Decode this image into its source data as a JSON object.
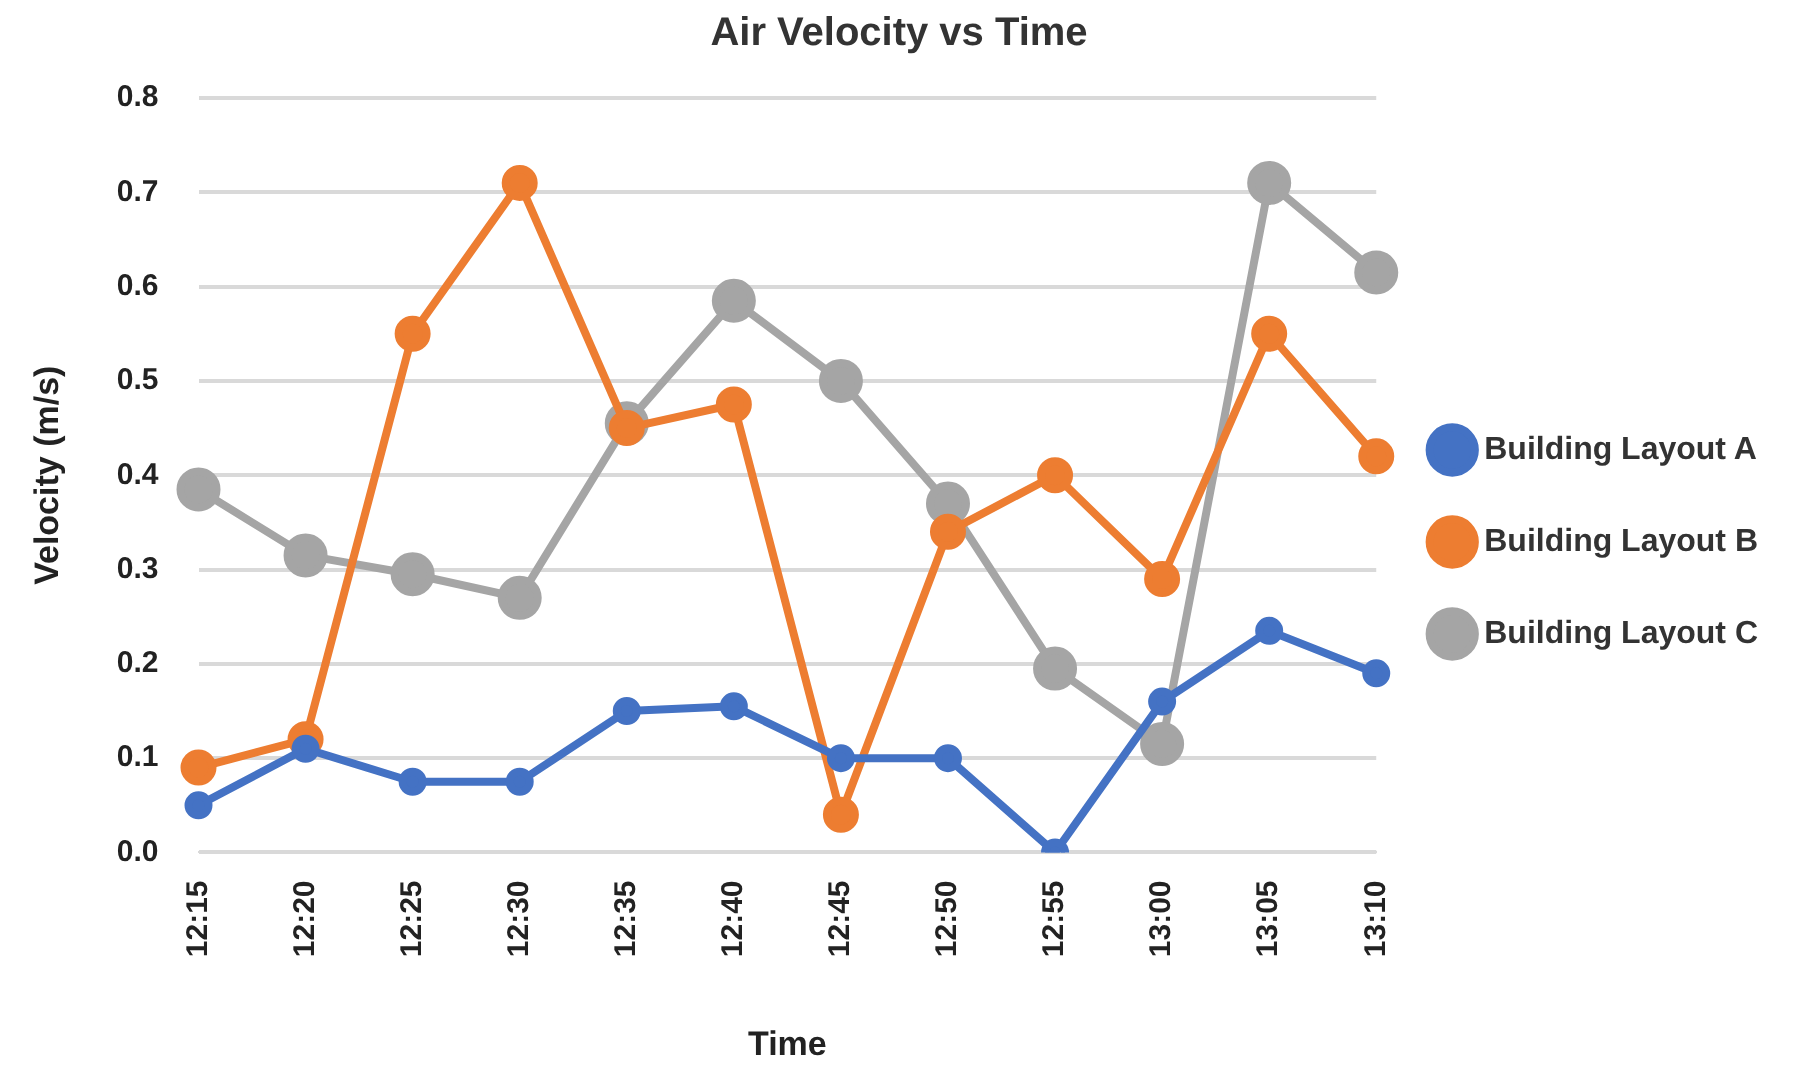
{
  "chart_data": {
    "type": "line",
    "title": "Air Velocity vs Time",
    "xlabel": "Time",
    "ylabel": "Velocity (m/s)",
    "categories": [
      "12:15",
      "12:20",
      "12:25",
      "12:30",
      "12:35",
      "12:40",
      "12:45",
      "12:50",
      "12:55",
      "13:00",
      "13:05",
      "13:10"
    ],
    "series": [
      {
        "name": "Building Layout A",
        "color": "#4472c4",
        "values": [
          0.05,
          0.11,
          0.075,
          0.075,
          0.15,
          0.155,
          0.1,
          0.1,
          0.0,
          0.16,
          0.235,
          0.19
        ]
      },
      {
        "name": "Building Layout B",
        "color": "#ed7d31",
        "values": [
          0.09,
          0.12,
          0.55,
          0.71,
          0.45,
          0.475,
          0.04,
          0.34,
          0.4,
          0.29,
          0.55,
          0.42
        ]
      },
      {
        "name": "Building Layout C",
        "color": "#a5a5a5",
        "values": [
          0.385,
          0.315,
          0.295,
          0.27,
          0.455,
          0.585,
          0.5,
          0.37,
          0.195,
          0.115,
          0.71,
          0.615
        ]
      }
    ],
    "ylim": [
      0,
      0.8
    ],
    "yticks": [
      {
        "value": 0,
        "label": "0.0"
      },
      {
        "value": 0.1,
        "label": "0.1"
      },
      {
        "value": 0.2,
        "label": "0.2"
      },
      {
        "value": 0.3,
        "label": "0.3"
      },
      {
        "value": 0.4,
        "label": "0.4"
      },
      {
        "value": 0.5,
        "label": "0.5"
      },
      {
        "value": 0.6,
        "label": "0.6"
      },
      {
        "value": 0.7,
        "label": "0.7"
      },
      {
        "value": 0.8,
        "label": "0.8"
      }
    ],
    "grid": "y",
    "legend": "right",
    "marker": "circle",
    "line_style": "solid"
  }
}
